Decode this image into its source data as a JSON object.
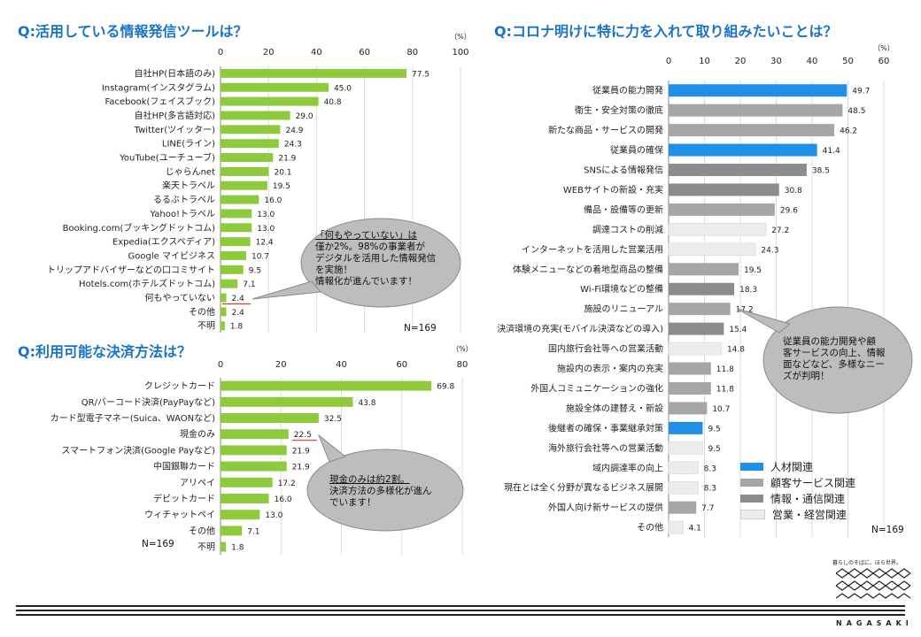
{
  "titles": {
    "tools": "Q:活用している情報発信ツールは？",
    "payment": "Q:利用可能な決済方法は？",
    "corona": "Q:コロナ明けに特に力を入れて取り組みたいことは？"
  },
  "percent_unit": "（%）",
  "bubbles": {
    "tools": [
      "「何もやっていない」は",
      "僅か2%。98%の事業者が",
      "デジタルを活用した情報発信",
      "を実施！",
      "情報化が進んでいます！"
    ],
    "payment": [
      "現金のみは約2割。",
      "決済方法の多様化が進ん",
      "でいます！"
    ],
    "corona": [
      "従業員の能力開発や顧",
      "客サービスの向上、情報",
      "面などなど、多様なニー",
      "ズが判明！"
    ]
  },
  "n_labels": {
    "tools": "N=169",
    "payment": "N=169",
    "corona": "N=169"
  },
  "logo": {
    "tagline": "暮らしのそばに、ほら世界。",
    "word": "NAGASAKI"
  },
  "legend": [
    {
      "label": "人材関連",
      "color": "#1e90e8"
    },
    {
      "label": "顧客サービス関連",
      "color": "#a6a6a6"
    },
    {
      "label": "情報・通信関連",
      "color": "#8c8c8c"
    },
    {
      "label": "営業・経営関連",
      "color": "#ececec"
    }
  ],
  "chart_data": [
    {
      "type": "bar",
      "orientation": "horizontal",
      "id": "tools",
      "title": "Q:活用している情報発信ツールは？",
      "unit": "（%）",
      "xlim": [
        0,
        100
      ],
      "ticks": [
        0,
        20,
        40,
        60,
        80,
        100
      ],
      "bar_color": "#8fca3d",
      "categories": [
        "自社HP(日本語のみ)",
        "Instagram(インスタグラム)",
        "Facebook(フェイスブック)",
        "自社HP(多言語対応)",
        "Twitter(ツイッター)",
        "LINE(ライン)",
        "YouTube(ユーチューブ)",
        "じゃらんnet",
        "楽天トラベル",
        "るるぶトラベル",
        "Yahoo!トラベル",
        "Booking.com(ブッキングドットコム)",
        "Expedia(エクスペディア)",
        "Google マイビジネス",
        "トリップアドバイザーなどの口コミサイト",
        "Hotels.com(ホテルズドットコム)",
        "何もやっていない",
        "その他",
        "不明"
      ],
      "values": [
        77.5,
        45.0,
        40.8,
        29.0,
        24.9,
        24.3,
        21.9,
        20.1,
        19.5,
        16.0,
        13.0,
        13.0,
        12.4,
        10.7,
        9.5,
        7.1,
        2.4,
        2.4,
        1.8
      ],
      "value_labels": [
        "77.5",
        "45.0",
        "40.8",
        "29.0",
        "24.9",
        "24.3",
        "21.9",
        "20.1",
        "19.5",
        "16.0",
        "13.0",
        "13.0",
        "12.4",
        "10.7",
        "9.5",
        "7.1",
        "2.4",
        "2.4",
        "1.8"
      ],
      "n": "N=169"
    },
    {
      "type": "bar",
      "orientation": "horizontal",
      "id": "payment",
      "title": "Q:利用可能な決済方法は？",
      "unit": "（%）",
      "xlim": [
        0,
        80
      ],
      "ticks": [
        0,
        20,
        40,
        60,
        80
      ],
      "bar_color": "#8fca3d",
      "categories": [
        "クレジットカード",
        "QR/バーコード決済(PayPayなど)",
        "カード型電子マネー(Suica、WAONなど)",
        "現金のみ",
        "スマートフォン決済(Google Payなど)",
        "中国銀聯カード",
        "アリペイ",
        "デビットカード",
        "ウィチャットペイ",
        "その他",
        "不明"
      ],
      "values": [
        69.8,
        43.8,
        32.5,
        22.5,
        21.9,
        21.9,
        17.2,
        16.0,
        13.0,
        7.1,
        1.8
      ],
      "value_labels": [
        "69.8",
        "43.8",
        "32.5",
        "22.5",
        "21.9",
        "21.9",
        "17.2",
        "16.0",
        "13.0",
        "7.1",
        "1.8"
      ],
      "n": "N=169"
    },
    {
      "type": "bar",
      "orientation": "horizontal",
      "id": "corona",
      "title": "Q:コロナ明けに特に力を入れて取り組みたいことは？",
      "unit": "（%）",
      "xlim": [
        0,
        60
      ],
      "ticks": [
        0,
        10,
        20,
        30,
        40,
        50,
        60
      ],
      "categories": [
        "従業員の能力開発",
        "衛生・安全対策の徹底",
        "新たな商品・サービスの開発",
        "従業員の確保",
        "SNSによる情報発信",
        "WEBサイトの新設・充実",
        "備品・設備等の更新",
        "調達コストの削減",
        "インターネットを活用した営業活用",
        "体験メニューなどの着地型商品の整備",
        "Wi-Fi環境などの整備",
        "施設のリニューアル",
        "決済環境の充実(モバイル決済などの導入)",
        "国内旅行会社等への営業活動",
        "施設内の表示・案内の充実",
        "外国人コミュニケーションの強化",
        "施設全体の建替え・新設",
        "後継者の確保・事業継承対策",
        "海外旅行会社等への営業活動",
        "域内調達率の向上",
        "現在とは全く分野が異なるビジネス展開",
        "外国人向け新サービスの提供",
        "その他"
      ],
      "values": [
        49.7,
        48.5,
        46.2,
        41.4,
        38.5,
        30.8,
        29.6,
        27.2,
        24.3,
        19.5,
        18.3,
        17.2,
        15.4,
        14.8,
        11.8,
        11.8,
        10.7,
        9.5,
        9.5,
        8.3,
        8.3,
        7.7,
        4.1
      ],
      "value_labels": [
        "49.7",
        "48.5",
        "46.2",
        "41.4",
        "38.5",
        "30.8",
        "29.6",
        "27.2",
        "24.3",
        "19.5",
        "18.3",
        "17.2",
        "15.4",
        "14.8",
        "11.8",
        "11.8",
        "10.7",
        "9.5",
        "9.5",
        "8.3",
        "8.3",
        "7.7",
        "4.1"
      ],
      "groups": [
        "人材関連",
        "顧客サービス関連",
        "顧客サービス関連",
        "人材関連",
        "情報・通信関連",
        "情報・通信関連",
        "顧客サービス関連",
        "営業・経営関連",
        "営業・経営関連",
        "顧客サービス関連",
        "情報・通信関連",
        "顧客サービス関連",
        "情報・通信関連",
        "営業・経営関連",
        "顧客サービス関連",
        "顧客サービス関連",
        "顧客サービス関連",
        "人材関連",
        "営業・経営関連",
        "営業・経営関連",
        "営業・経営関連",
        "顧客サービス関連",
        "営業・経営関連"
      ],
      "n": "N=169"
    }
  ]
}
